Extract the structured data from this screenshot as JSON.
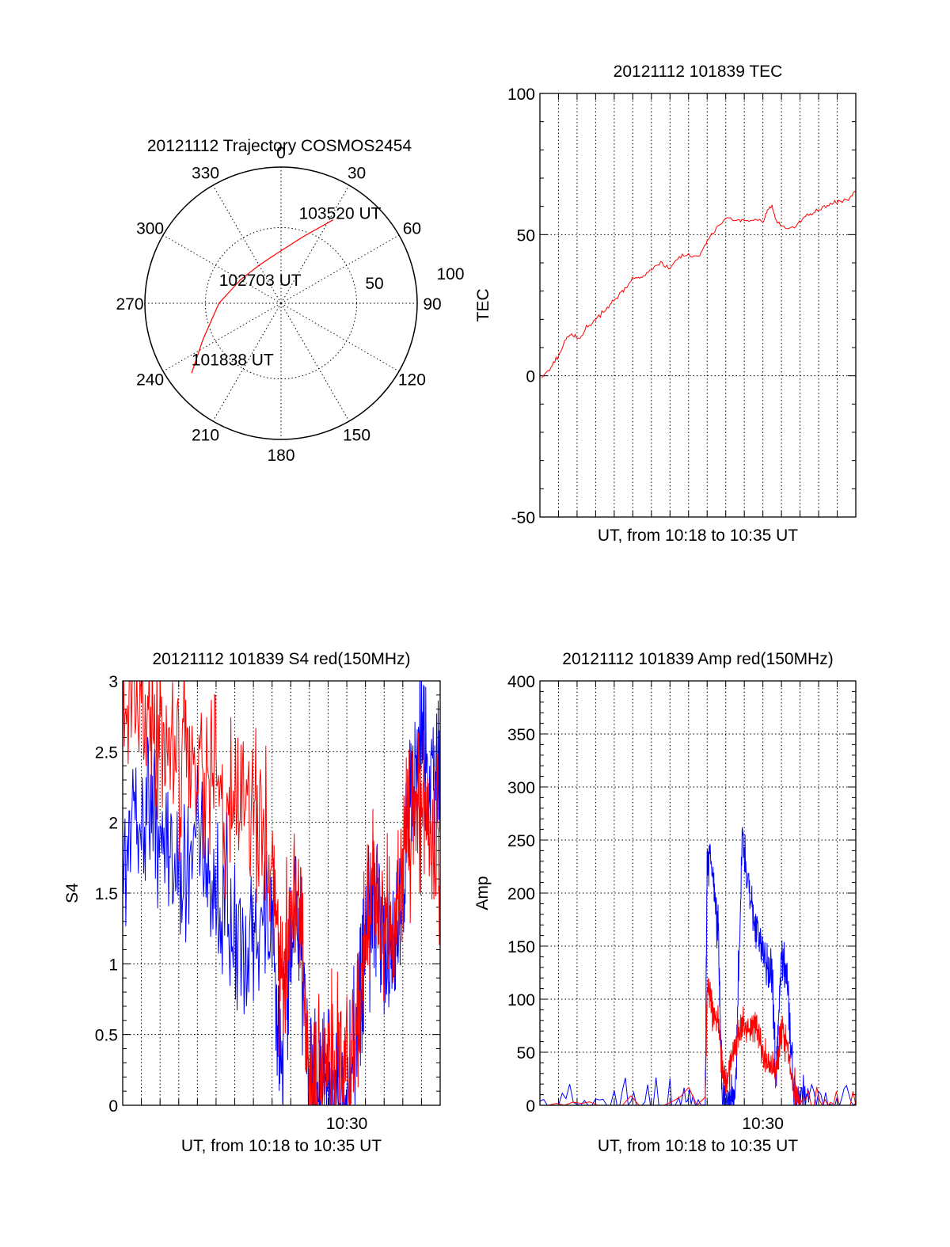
{
  "colors": {
    "red": "#ff0000",
    "blue": "#0000ff",
    "axis": "#000000",
    "background": "#ffffff"
  },
  "chart_data": [
    {
      "type": "polar",
      "title": "20121112 Trajectory COSMOS2454",
      "azimuth_labels": [
        "0",
        "30",
        "60",
        "90",
        "120",
        "150",
        "180",
        "210",
        "240",
        "270",
        "300",
        "330"
      ],
      "ring_labels": [
        "50",
        "100"
      ],
      "rlim": [
        0,
        100
      ],
      "radial_axis": "elevation, 90 at centre, 0 at rim",
      "series": [
        {
          "color": "#ff0000",
          "points": [
            {
              "az": 232,
              "el": 15
            },
            {
              "az": 245,
              "el": 33
            },
            {
              "az": 270,
              "el": 49
            },
            {
              "az": 300,
              "el": 59
            },
            {
              "az": 330,
              "el": 61
            },
            {
              "az": 355,
              "el": 57
            },
            {
              "az": 18,
              "el": 44
            },
            {
              "az": 32,
              "el": 25
            }
          ]
        }
      ],
      "annotations": [
        {
          "text": "103520 UT",
          "az": 35,
          "el": 22
        },
        {
          "text": "102703 UT",
          "az": 310,
          "el": 72
        },
        {
          "text": "101838 UT",
          "az": 218,
          "el": 38
        }
      ]
    },
    {
      "type": "line",
      "title": "20121112 101839 TEC",
      "xlabel": "UT, from 10:18 to 10:35 UT",
      "ylabel": "TEC",
      "ylim": [
        -50,
        100
      ],
      "yticks": [
        "-50",
        "0",
        "50",
        "100"
      ],
      "xlim": [
        0,
        17
      ],
      "xticks": [],
      "grid": true,
      "series": [
        {
          "color": "#ff0000",
          "x": [
            0.1,
            0.6,
            1.0,
            1.4,
            1.7,
            2.1,
            2.5,
            3.0,
            3.5,
            3.9,
            4.3,
            4.7,
            5.1,
            5.5,
            6.0,
            6.5,
            7.0,
            7.5,
            8.0,
            8.6,
            9.0,
            9.5,
            10.1,
            10.6,
            11.0,
            11.5,
            12.0,
            12.3,
            12.5,
            12.7,
            13.2,
            13.8,
            14.3,
            14.8,
            15.3,
            15.8,
            16.2,
            16.6,
            17.0
          ],
          "y": [
            0,
            3,
            7,
            13,
            15,
            13,
            17,
            20,
            23,
            26,
            29,
            32,
            35,
            35,
            38,
            40,
            38,
            42,
            43,
            42,
            48,
            52,
            56,
            55,
            55,
            55,
            55,
            59,
            60,
            55,
            52,
            53,
            57,
            58,
            60,
            61,
            62,
            63,
            65
          ]
        }
      ]
    },
    {
      "type": "line",
      "title": "20121112 101839 S4 red(150MHz)",
      "xlabel": "UT, from 10:18 to 10:35 UT",
      "ylabel": "S4",
      "ylim": [
        0,
        3
      ],
      "yticks": [
        "0",
        "0.5",
        "1",
        "1.5",
        "2",
        "2.5",
        "3"
      ],
      "xlim": [
        0,
        17
      ],
      "xticks": [
        {
          "x": 12,
          "label": "10:30"
        }
      ],
      "grid": true,
      "series": [
        {
          "color": "#0000ff",
          "x": [
            0.0,
            1.0,
            2.0,
            3.0,
            4.0,
            5.0,
            6.0,
            7.0,
            8.0,
            8.5,
            9.0,
            9.5,
            10.0,
            10.5,
            11.0,
            11.5,
            12.0,
            12.5,
            13.0,
            13.5,
            14.0,
            14.5,
            15.0,
            15.5,
            16.0,
            16.5,
            17.0
          ],
          "y": [
            1.7,
            2.2,
            1.9,
            1.7,
            1.8,
            1.5,
            1.3,
            1.2,
            1.3,
            0.2,
            1.3,
            1.2,
            0.12,
            0.15,
            0.11,
            0.1,
            0.1,
            0.35,
            1.2,
            1.5,
            1.2,
            1.0,
            1.6,
            2.3,
            2.6,
            2.4,
            2.3
          ]
        },
        {
          "color": "#ff0000",
          "x": [
            0.0,
            1.0,
            2.0,
            3.0,
            4.0,
            5.0,
            6.0,
            7.0,
            8.0,
            8.5,
            9.0,
            9.5,
            10.0,
            10.5,
            11.0,
            11.5,
            12.0,
            12.5,
            13.0,
            13.5,
            14.0,
            14.5,
            15.0,
            15.5,
            16.0,
            16.5,
            17.0
          ],
          "y": [
            2.8,
            2.7,
            2.6,
            2.5,
            2.4,
            2.3,
            2.1,
            2.2,
            1.7,
            0.9,
            1.4,
            1.4,
            0.2,
            0.25,
            0.25,
            0.3,
            0.25,
            0.3,
            1.3,
            1.5,
            1.3,
            1.1,
            1.7,
            2.0,
            2.2,
            1.9,
            1.7
          ]
        }
      ]
    },
    {
      "type": "line",
      "title": "20121112 101839 Amp red(150MHz)",
      "xlabel": "UT, from 10:18 to 10:35 UT",
      "ylabel": "Amp",
      "ylim": [
        0,
        400
      ],
      "yticks": [
        "0",
        "50",
        "100",
        "150",
        "200",
        "250",
        "300",
        "350",
        "400"
      ],
      "xlim": [
        0,
        17
      ],
      "xticks": [
        {
          "x": 12,
          "label": "10:30"
        }
      ],
      "grid": true,
      "series": [
        {
          "color": "#0000ff",
          "x": [
            0.0,
            4.0,
            7.0,
            8.9,
            9.0,
            9.3,
            9.6,
            9.8,
            10.2,
            10.5,
            10.9,
            11.3,
            11.6,
            11.9,
            12.2,
            12.5,
            12.7,
            13.0,
            13.3,
            13.7,
            14.5,
            17.0
          ],
          "y": [
            1,
            1,
            1,
            3,
            240,
            220,
            160,
            20,
            5,
            3,
            250,
            200,
            170,
            150,
            130,
            120,
            20,
            140,
            120,
            5,
            2,
            2
          ]
        },
        {
          "color": "#ff0000",
          "x": [
            0.0,
            8.9,
            9.0,
            9.3,
            9.6,
            9.8,
            10.0,
            10.3,
            10.6,
            10.9,
            11.3,
            11.6,
            11.9,
            12.2,
            12.5,
            12.8,
            13.0,
            13.3,
            13.6,
            14.0,
            17.0
          ],
          "y": [
            0,
            0,
            110,
            90,
            80,
            40,
            20,
            40,
            60,
            80,
            70,
            80,
            60,
            40,
            30,
            40,
            70,
            60,
            20,
            2,
            0
          ]
        }
      ]
    }
  ]
}
